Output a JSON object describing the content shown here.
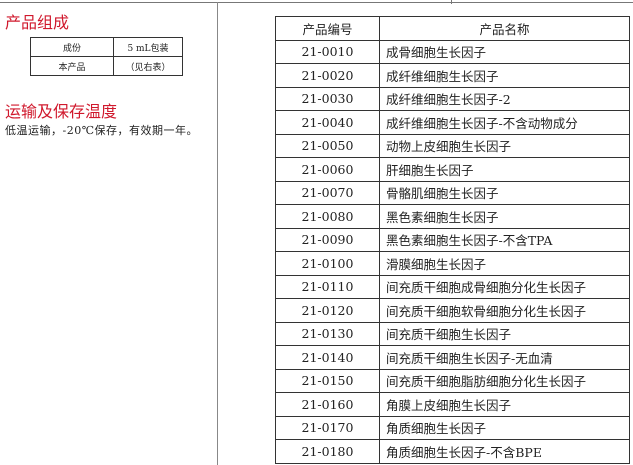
{
  "composition": {
    "title": "产品组成",
    "rows": [
      [
        "成份",
        "5 mL包装"
      ],
      [
        "本产品",
        "（见右表）"
      ]
    ]
  },
  "storage": {
    "title": "运输及保存温度",
    "text": "低温运输，-20℃保存，有效期一年。"
  },
  "product_table": {
    "headers": [
      "产品编号",
      "产品名称"
    ],
    "rows": [
      [
        "21-0010",
        "成骨细胞生长因子"
      ],
      [
        "21-0020",
        "成纤维细胞生长因子"
      ],
      [
        "21-0030",
        "成纤维细胞生长因子-2"
      ],
      [
        "21-0040",
        "成纤维细胞生长因子-不含动物成分"
      ],
      [
        "21-0050",
        "动物上皮细胞生长因子"
      ],
      [
        "21-0060",
        "肝细胞生长因子"
      ],
      [
        "21-0070",
        "骨骼肌细胞生长因子"
      ],
      [
        "21-0080",
        "黑色素细胞生长因子"
      ],
      [
        "21-0090",
        "黑色素细胞生长因子-不含TPA"
      ],
      [
        "21-0100",
        "滑膜细胞生长因子"
      ],
      [
        "21-0110",
        "间充质干细胞成骨细胞分化生长因子"
      ],
      [
        "21-0120",
        "间充质干细胞软骨细胞分化生长因子"
      ],
      [
        "21-0130",
        "间充质干细胞生长因子"
      ],
      [
        "21-0140",
        "间充质干细胞生长因子-无血清"
      ],
      [
        "21-0150",
        "间充质干细胞脂肪细胞分化生长因子"
      ],
      [
        "21-0160",
        "角膜上皮细胞生长因子"
      ],
      [
        "21-0170",
        "角质细胞生长因子"
      ],
      [
        "21-0180",
        "角质细胞生长因子-不含BPE"
      ]
    ]
  },
  "colors": {
    "heading": "#d0192d"
  }
}
